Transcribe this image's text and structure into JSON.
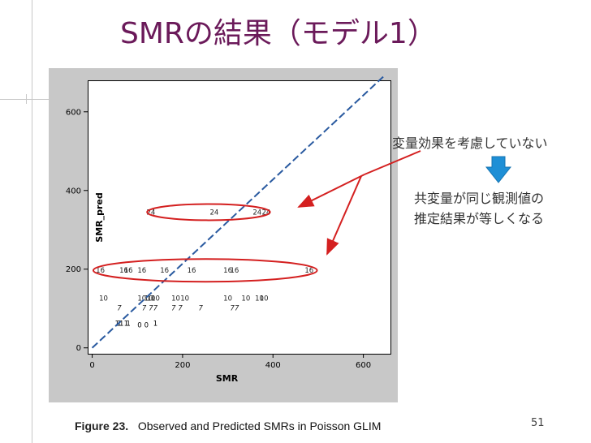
{
  "slide": {
    "title": "SMRの結果（モデル1）",
    "page_number": "51",
    "accent_color": "#6b1a5a"
  },
  "annotations": {
    "top": "変量効果を考慮していない",
    "bottom_line1": "共変量が同じ観測値の",
    "bottom_line2": "推定結果が等しくなる",
    "arrow_color": "#d42020",
    "down_arrow_color": "#1e8fd6"
  },
  "caption": {
    "label": "Figure 23.",
    "text": "Observed and Predicted SMRs in Poisson GLIM"
  },
  "chart_data": {
    "type": "scatter",
    "title": "",
    "xlabel": "SMR",
    "ylabel": "SMR_pred",
    "xlim": [
      -10,
      660
    ],
    "ylim": [
      -15,
      680
    ],
    "x_ticks": [
      "0",
      "200",
      "400",
      "600"
    ],
    "y_ticks": [
      "0",
      "200",
      "400",
      "600"
    ],
    "reference_line": "y = x (dashed)",
    "series": [
      {
        "name": "24",
        "points": [
          [
            130,
            345
          ],
          [
            270,
            345
          ],
          [
            365,
            345
          ],
          [
            385,
            345
          ]
        ]
      },
      {
        "name": "16",
        "points": [
          [
            18,
            197
          ],
          [
            70,
            197
          ],
          [
            80,
            197
          ],
          [
            110,
            197
          ],
          [
            160,
            197
          ],
          [
            220,
            197
          ],
          [
            300,
            197
          ],
          [
            315,
            197
          ],
          [
            480,
            197
          ]
        ]
      },
      {
        "name": "10",
        "points": [
          [
            25,
            126
          ],
          [
            110,
            126
          ],
          [
            125,
            126
          ],
          [
            130,
            126
          ],
          [
            140,
            126
          ],
          [
            185,
            126
          ],
          [
            205,
            126
          ],
          [
            300,
            126
          ],
          [
            340,
            126
          ],
          [
            370,
            126
          ],
          [
            380,
            126
          ]
        ]
      },
      {
        "name": "7",
        "points": [
          [
            60,
            102
          ],
          [
            115,
            102
          ],
          [
            130,
            102
          ],
          [
            140,
            102
          ],
          [
            180,
            102
          ],
          [
            195,
            102
          ],
          [
            240,
            102
          ],
          [
            310,
            102
          ],
          [
            320,
            102
          ]
        ]
      },
      {
        "name": "1",
        "points": [
          [
            55,
            62
          ],
          [
            60,
            62
          ],
          [
            65,
            62
          ],
          [
            75,
            62
          ],
          [
            80,
            62
          ],
          [
            140,
            62
          ]
        ]
      },
      {
        "name": "0",
        "points": [
          [
            105,
            58
          ],
          [
            120,
            58
          ]
        ]
      }
    ]
  }
}
